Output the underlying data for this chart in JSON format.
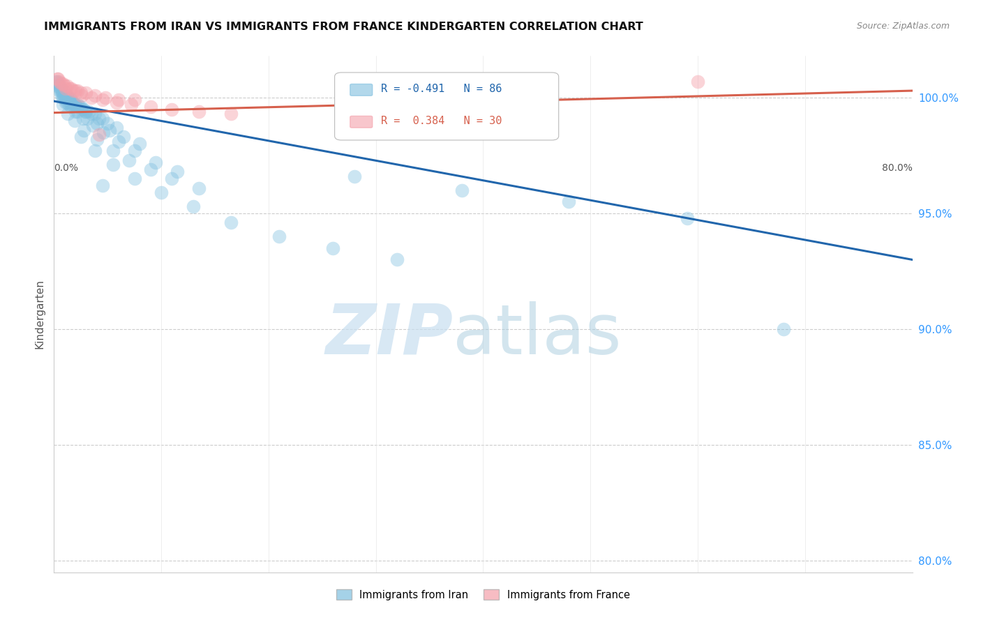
{
  "title": "IMMIGRANTS FROM IRAN VS IMMIGRANTS FROM FRANCE KINDERGARTEN CORRELATION CHART",
  "source": "Source: ZipAtlas.com",
  "ylabel": "Kindergarten",
  "xmin": 0.0,
  "xmax": 0.8,
  "ymin": 0.795,
  "ymax": 1.018,
  "iran_color": "#7fbfdf",
  "france_color": "#f4a0aa",
  "iran_line_color": "#2166ac",
  "france_line_color": "#d6604d",
  "iran_R": -0.491,
  "iran_N": 86,
  "france_R": 0.384,
  "france_N": 30,
  "legend_label_iran": "Immigrants from Iran",
  "legend_label_france": "Immigrants from France",
  "iran_trendline_x": [
    0.0,
    0.8
  ],
  "iran_trendline_y": [
    0.9985,
    0.93
  ],
  "france_trendline_x": [
    0.0,
    0.8
  ],
  "france_trendline_y": [
    0.9935,
    1.003
  ],
  "iran_scatter_x": [
    0.005,
    0.008,
    0.01,
    0.012,
    0.015,
    0.003,
    0.006,
    0.009,
    0.011,
    0.014,
    0.004,
    0.007,
    0.013,
    0.016,
    0.018,
    0.02,
    0.022,
    0.025,
    0.028,
    0.03,
    0.002,
    0.005,
    0.008,
    0.012,
    0.017,
    0.021,
    0.026,
    0.032,
    0.038,
    0.045,
    0.006,
    0.01,
    0.015,
    0.019,
    0.024,
    0.029,
    0.035,
    0.042,
    0.05,
    0.058,
    0.003,
    0.007,
    0.011,
    0.016,
    0.022,
    0.031,
    0.04,
    0.052,
    0.065,
    0.08,
    0.009,
    0.014,
    0.02,
    0.027,
    0.036,
    0.046,
    0.06,
    0.075,
    0.095,
    0.115,
    0.008,
    0.013,
    0.019,
    0.028,
    0.04,
    0.055,
    0.07,
    0.09,
    0.11,
    0.135,
    0.025,
    0.038,
    0.055,
    0.075,
    0.1,
    0.13,
    0.165,
    0.21,
    0.26,
    0.32,
    0.045,
    0.28,
    0.38,
    0.48,
    0.59,
    0.68
  ],
  "iran_scatter_y": [
    1.005,
    1.003,
    1.002,
    1.001,
    1.0,
    1.007,
    1.004,
    1.001,
    1.0,
    0.999,
    1.006,
    1.003,
    1.0,
    0.999,
    0.998,
    0.997,
    0.997,
    0.996,
    0.995,
    0.994,
    1.007,
    1.003,
    1.0,
    0.998,
    0.997,
    0.996,
    0.995,
    0.994,
    0.993,
    0.991,
    1.003,
    1.0,
    0.998,
    0.997,
    0.996,
    0.994,
    0.993,
    0.991,
    0.989,
    0.987,
    1.005,
    1.001,
    0.998,
    0.996,
    0.994,
    0.991,
    0.989,
    0.986,
    0.983,
    0.98,
    1.0,
    0.997,
    0.994,
    0.991,
    0.988,
    0.985,
    0.981,
    0.977,
    0.972,
    0.968,
    0.997,
    0.993,
    0.99,
    0.986,
    0.982,
    0.977,
    0.973,
    0.969,
    0.965,
    0.961,
    0.983,
    0.977,
    0.971,
    0.965,
    0.959,
    0.953,
    0.946,
    0.94,
    0.935,
    0.93,
    0.962,
    0.966,
    0.96,
    0.955,
    0.948,
    0.9
  ],
  "france_scatter_x": [
    0.004,
    0.008,
    0.012,
    0.016,
    0.02,
    0.025,
    0.005,
    0.01,
    0.015,
    0.022,
    0.03,
    0.038,
    0.048,
    0.06,
    0.075,
    0.003,
    0.007,
    0.011,
    0.018,
    0.026,
    0.035,
    0.045,
    0.058,
    0.072,
    0.09,
    0.11,
    0.135,
    0.165,
    0.6,
    0.042
  ],
  "france_scatter_y": [
    1.008,
    1.006,
    1.005,
    1.004,
    1.003,
    1.002,
    1.007,
    1.005,
    1.004,
    1.003,
    1.002,
    1.001,
    1.0,
    0.999,
    0.999,
    1.008,
    1.006,
    1.004,
    1.003,
    1.001,
    1.0,
    0.999,
    0.998,
    0.997,
    0.996,
    0.995,
    0.994,
    0.993,
    1.007,
    0.984
  ]
}
